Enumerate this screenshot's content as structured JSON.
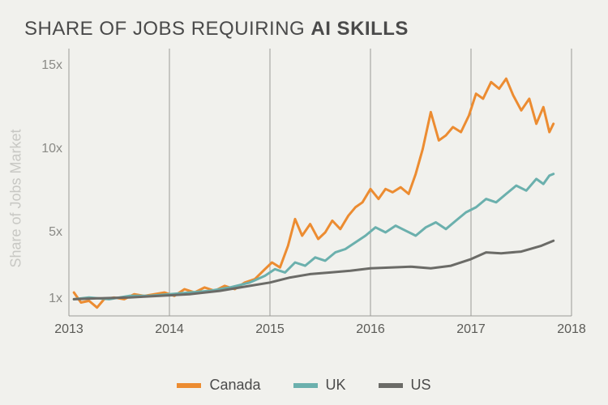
{
  "title_prefix": "SHARE OF JOBS REQUIRING ",
  "title_bold": "AI SKILLS",
  "chart": {
    "type": "line",
    "background_color": "#f1f1ed",
    "title_color": "#4a4a4a",
    "title_fontsize": 24,
    "ylabel": "Share of Jobs Market",
    "ylabel_color": "#c8c8c4",
    "ylabel_fontsize": 18,
    "xlim": [
      2013,
      2018
    ],
    "ylim": [
      0,
      16
    ],
    "xtick_step": 1,
    "xticks": [
      2013,
      2014,
      2015,
      2016,
      2017,
      2018
    ],
    "yticks": [
      1,
      5,
      10,
      15
    ],
    "ytick_labels": [
      "1x",
      "5x",
      "10x",
      "15x"
    ],
    "tick_color": "#8a8a86",
    "tick_fontsize": 16,
    "grid_color": "#9a9a96",
    "grid_width": 1,
    "axis_color": "#9a9a96",
    "line_width": 3,
    "legend_fontsize": 18,
    "series": [
      {
        "name": "Canada",
        "color": "#ec8c31",
        "points": [
          [
            2013.05,
            1.4
          ],
          [
            2013.12,
            0.8
          ],
          [
            2013.2,
            0.9
          ],
          [
            2013.28,
            0.5
          ],
          [
            2013.35,
            1.0
          ],
          [
            2013.45,
            1.1
          ],
          [
            2013.55,
            1.0
          ],
          [
            2013.65,
            1.3
          ],
          [
            2013.75,
            1.2
          ],
          [
            2013.85,
            1.3
          ],
          [
            2013.95,
            1.4
          ],
          [
            2014.05,
            1.2
          ],
          [
            2014.15,
            1.6
          ],
          [
            2014.25,
            1.4
          ],
          [
            2014.35,
            1.7
          ],
          [
            2014.45,
            1.5
          ],
          [
            2014.55,
            1.8
          ],
          [
            2014.65,
            1.6
          ],
          [
            2014.75,
            2.0
          ],
          [
            2014.85,
            2.2
          ],
          [
            2014.95,
            2.8
          ],
          [
            2015.02,
            3.2
          ],
          [
            2015.1,
            2.9
          ],
          [
            2015.18,
            4.2
          ],
          [
            2015.25,
            5.8
          ],
          [
            2015.32,
            4.8
          ],
          [
            2015.4,
            5.5
          ],
          [
            2015.48,
            4.6
          ],
          [
            2015.55,
            5.0
          ],
          [
            2015.62,
            5.7
          ],
          [
            2015.7,
            5.2
          ],
          [
            2015.78,
            6.0
          ],
          [
            2015.85,
            6.5
          ],
          [
            2015.92,
            6.8
          ],
          [
            2016.0,
            7.6
          ],
          [
            2016.08,
            7.0
          ],
          [
            2016.15,
            7.6
          ],
          [
            2016.22,
            7.4
          ],
          [
            2016.3,
            7.7
          ],
          [
            2016.38,
            7.3
          ],
          [
            2016.45,
            8.5
          ],
          [
            2016.52,
            10.0
          ],
          [
            2016.6,
            12.2
          ],
          [
            2016.68,
            10.5
          ],
          [
            2016.75,
            10.8
          ],
          [
            2016.82,
            11.3
          ],
          [
            2016.9,
            11.0
          ],
          [
            2016.98,
            12.0
          ],
          [
            2017.05,
            13.3
          ],
          [
            2017.12,
            13.0
          ],
          [
            2017.2,
            14.0
          ],
          [
            2017.28,
            13.6
          ],
          [
            2017.35,
            14.2
          ],
          [
            2017.42,
            13.2
          ],
          [
            2017.5,
            12.3
          ],
          [
            2017.58,
            13.0
          ],
          [
            2017.65,
            11.5
          ],
          [
            2017.72,
            12.5
          ],
          [
            2017.78,
            11.0
          ],
          [
            2017.82,
            11.5
          ]
        ]
      },
      {
        "name": "UK",
        "color": "#6bb0ad",
        "points": [
          [
            2013.05,
            1.0
          ],
          [
            2013.2,
            1.1
          ],
          [
            2013.4,
            1.0
          ],
          [
            2013.6,
            1.2
          ],
          [
            2013.8,
            1.2
          ],
          [
            2014.0,
            1.3
          ],
          [
            2014.2,
            1.4
          ],
          [
            2014.4,
            1.5
          ],
          [
            2014.6,
            1.7
          ],
          [
            2014.8,
            2.0
          ],
          [
            2014.95,
            2.4
          ],
          [
            2015.05,
            2.8
          ],
          [
            2015.15,
            2.6
          ],
          [
            2015.25,
            3.2
          ],
          [
            2015.35,
            3.0
          ],
          [
            2015.45,
            3.5
          ],
          [
            2015.55,
            3.3
          ],
          [
            2015.65,
            3.8
          ],
          [
            2015.75,
            4.0
          ],
          [
            2015.85,
            4.4
          ],
          [
            2015.95,
            4.8
          ],
          [
            2016.05,
            5.3
          ],
          [
            2016.15,
            5.0
          ],
          [
            2016.25,
            5.4
          ],
          [
            2016.35,
            5.1
          ],
          [
            2016.45,
            4.8
          ],
          [
            2016.55,
            5.3
          ],
          [
            2016.65,
            5.6
          ],
          [
            2016.75,
            5.2
          ],
          [
            2016.85,
            5.7
          ],
          [
            2016.95,
            6.2
          ],
          [
            2017.05,
            6.5
          ],
          [
            2017.15,
            7.0
          ],
          [
            2017.25,
            6.8
          ],
          [
            2017.35,
            7.3
          ],
          [
            2017.45,
            7.8
          ],
          [
            2017.55,
            7.5
          ],
          [
            2017.65,
            8.2
          ],
          [
            2017.72,
            7.9
          ],
          [
            2017.78,
            8.4
          ],
          [
            2017.82,
            8.5
          ]
        ]
      },
      {
        "name": "US",
        "color": "#6b6b67",
        "points": [
          [
            2013.05,
            1.0
          ],
          [
            2013.3,
            1.05
          ],
          [
            2013.6,
            1.1
          ],
          [
            2013.9,
            1.2
          ],
          [
            2014.2,
            1.3
          ],
          [
            2014.5,
            1.5
          ],
          [
            2014.8,
            1.8
          ],
          [
            2015.0,
            2.0
          ],
          [
            2015.2,
            2.3
          ],
          [
            2015.4,
            2.5
          ],
          [
            2015.6,
            2.6
          ],
          [
            2015.8,
            2.7
          ],
          [
            2016.0,
            2.85
          ],
          [
            2016.2,
            2.9
          ],
          [
            2016.4,
            2.95
          ],
          [
            2016.6,
            2.85
          ],
          [
            2016.8,
            3.0
          ],
          [
            2017.0,
            3.4
          ],
          [
            2017.15,
            3.8
          ],
          [
            2017.3,
            3.75
          ],
          [
            2017.5,
            3.85
          ],
          [
            2017.7,
            4.2
          ],
          [
            2017.82,
            4.5
          ]
        ]
      }
    ]
  }
}
